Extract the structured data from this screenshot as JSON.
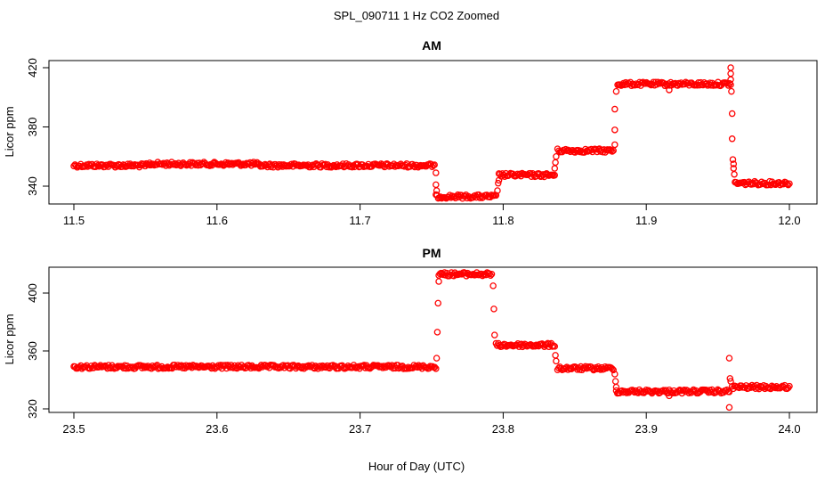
{
  "chart_data": {
    "type": "scatter",
    "title": "SPL_090711  1 Hz CO2 Zoomed",
    "xlabel": "Hour of Day (UTC)",
    "point_color": "#ff0000",
    "panels": [
      {
        "name": "am",
        "title": "AM",
        "ylabel": "Licor ppm",
        "xlim": [
          11.5,
          12.0
        ],
        "ylim": [
          330,
          424
        ],
        "xticks": [
          11.5,
          11.6,
          11.7,
          11.8,
          11.9,
          12.0
        ],
        "xtick_labels": [
          "11.5",
          "11.6",
          "11.7",
          "11.8",
          "11.9",
          "12.0"
        ],
        "yticks": [
          340,
          380,
          420
        ],
        "ytick_labels": [
          "340",
          "380",
          "420"
        ],
        "segments": [
          {
            "x_start": 11.5,
            "x_end": 11.553,
            "y": 354.0
          },
          {
            "x_start": 11.553,
            "x_end": 11.628,
            "y": 355.0
          },
          {
            "x_start": 11.628,
            "x_end": 11.752,
            "y": 354.0
          },
          {
            "x_start": 11.753,
            "x_end": 11.795,
            "y": 333.0
          },
          {
            "x_start": 11.797,
            "x_end": 11.836,
            "y": 347.5
          },
          {
            "x_start": 11.838,
            "x_end": 11.877,
            "y": 364.0
          },
          {
            "x_start": 11.88,
            "x_end": 11.959,
            "y": 409.0
          },
          {
            "x_start": 11.962,
            "x_end": 12.0,
            "y": 342.0
          }
        ],
        "transitions": [
          {
            "x": 11.753,
            "y": 349
          },
          {
            "x": 11.753,
            "y": 341
          },
          {
            "x": 11.7535,
            "y": 337
          },
          {
            "x": 11.796,
            "y": 337
          },
          {
            "x": 11.7965,
            "y": 342
          },
          {
            "x": 11.797,
            "y": 344
          },
          {
            "x": 11.836,
            "y": 352
          },
          {
            "x": 11.8365,
            "y": 356
          },
          {
            "x": 11.837,
            "y": 360
          },
          {
            "x": 11.878,
            "y": 368
          },
          {
            "x": 11.878,
            "y": 378
          },
          {
            "x": 11.878,
            "y": 392
          },
          {
            "x": 11.879,
            "y": 404
          },
          {
            "x": 11.916,
            "y": 405
          },
          {
            "x": 11.959,
            "y": 420
          },
          {
            "x": 11.959,
            "y": 416
          },
          {
            "x": 11.959,
            "y": 412
          },
          {
            "x": 11.9595,
            "y": 404
          },
          {
            "x": 11.96,
            "y": 389
          },
          {
            "x": 11.96,
            "y": 372
          },
          {
            "x": 11.9605,
            "y": 358
          },
          {
            "x": 11.961,
            "y": 355
          },
          {
            "x": 11.961,
            "y": 352
          },
          {
            "x": 11.9615,
            "y": 348
          }
        ]
      },
      {
        "name": "pm",
        "title": "PM",
        "ylabel": "Licor ppm",
        "xlim": [
          23.5,
          24.0
        ],
        "ylim": [
          318,
          420
        ],
        "xticks": [
          23.5,
          23.6,
          23.7,
          23.8,
          23.9,
          24.0
        ],
        "xtick_labels": [
          "23.5",
          "23.6",
          "23.7",
          "23.8",
          "23.9",
          "24.0"
        ],
        "yticks": [
          320,
          360,
          400
        ],
        "ytick_labels": [
          "320",
          "360",
          "400"
        ],
        "segments": [
          {
            "x_start": 23.5,
            "x_end": 23.753,
            "y": 349.0
          },
          {
            "x_start": 23.755,
            "x_end": 23.792,
            "y": 413.0
          },
          {
            "x_start": 23.795,
            "x_end": 23.836,
            "y": 364.0
          },
          {
            "x_start": 23.838,
            "x_end": 23.877,
            "y": 348.0
          },
          {
            "x_start": 23.879,
            "x_end": 23.958,
            "y": 332.0
          },
          {
            "x_start": 23.96,
            "x_end": 24.0,
            "y": 335.0
          }
        ],
        "transitions": [
          {
            "x": 23.7535,
            "y": 355
          },
          {
            "x": 23.754,
            "y": 373
          },
          {
            "x": 23.7545,
            "y": 393
          },
          {
            "x": 23.755,
            "y": 408
          },
          {
            "x": 23.793,
            "y": 405
          },
          {
            "x": 23.7935,
            "y": 389
          },
          {
            "x": 23.794,
            "y": 371
          },
          {
            "x": 23.8365,
            "y": 357
          },
          {
            "x": 23.837,
            "y": 353
          },
          {
            "x": 23.878,
            "y": 344
          },
          {
            "x": 23.8785,
            "y": 339
          },
          {
            "x": 23.879,
            "y": 335
          },
          {
            "x": 23.916,
            "y": 329
          },
          {
            "x": 23.958,
            "y": 355
          },
          {
            "x": 23.958,
            "y": 321
          },
          {
            "x": 23.9585,
            "y": 341
          },
          {
            "x": 23.959,
            "y": 339
          }
        ]
      }
    ]
  }
}
